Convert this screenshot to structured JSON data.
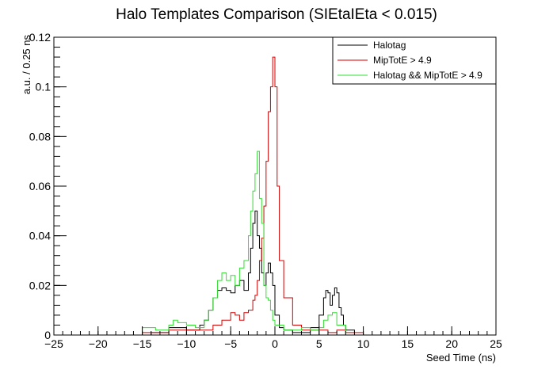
{
  "chart_data": {
    "type": "line",
    "title": "Halo Templates Comparison (SIEtaIEta < 0.015)",
    "xlabel": "Seed Time (ns)",
    "ylabel": "a.u. / 0.25 ns",
    "xlim": [
      -25,
      25
    ],
    "ylim": [
      0,
      0.12
    ],
    "xticks": [
      -25,
      -20,
      -15,
      -10,
      -5,
      0,
      5,
      10,
      15,
      20,
      25
    ],
    "xtick_labels": [
      "−25",
      "−20",
      "−15",
      "−10",
      "−5",
      "0",
      "5",
      "10",
      "15",
      "20",
      "25"
    ],
    "yticks": [
      0,
      0.02,
      0.04,
      0.06,
      0.08,
      0.1,
      0.12
    ],
    "ytick_labels": [
      "0",
      "0.02",
      "0.04",
      "0.06",
      "0.08",
      "0.1",
      "0.12"
    ],
    "bin_width": 0.25,
    "grid": false,
    "legend_position": "top-right",
    "series": [
      {
        "name": "Halotag",
        "color": "#000000",
        "x": [
          -17.0,
          -14.0,
          -12.0,
          -11.0,
          -10.0,
          -9.0,
          -8.5,
          -8.0,
          -7.5,
          -7.0,
          -6.5,
          -6.0,
          -5.5,
          -5.0,
          -4.5,
          -4.0,
          -3.5,
          -3.0,
          -2.75,
          -2.5,
          -2.25,
          -2.0,
          -1.75,
          -1.5,
          -1.25,
          -1.0,
          -0.75,
          -0.5,
          -0.25,
          0.0,
          0.5,
          1.0,
          2.0,
          3.0,
          4.0,
          5.0,
          5.5,
          5.75,
          6.0,
          6.25,
          6.5,
          6.75,
          7.0,
          7.25,
          7.5,
          7.75,
          8.0,
          9.0
        ],
        "y": [
          0.0,
          0.001,
          0.003,
          0.003,
          0.002,
          0.002,
          0.004,
          0.006,
          0.01,
          0.015,
          0.018,
          0.019,
          0.018,
          0.017,
          0.02,
          0.022,
          0.018,
          0.025,
          0.035,
          0.045,
          0.05,
          0.04,
          0.035,
          0.025,
          0.02,
          0.025,
          0.029,
          0.025,
          0.02,
          0.008,
          0.003,
          0.002,
          0.001,
          0.001,
          0.003,
          0.008,
          0.015,
          0.018,
          0.017,
          0.012,
          0.016,
          0.019,
          0.017,
          0.011,
          0.008,
          0.004,
          0.002,
          0.0
        ],
        "label_text": "Halotag"
      },
      {
        "name": "MipTotE > 4.9",
        "color": "#d00000",
        "x": [
          -16.0,
          -15.0,
          -12.0,
          -10.0,
          -8.0,
          -7.0,
          -6.0,
          -5.0,
          -4.5,
          -4.0,
          -3.5,
          -3.0,
          -2.5,
          -2.25,
          -2.0,
          -1.75,
          -1.5,
          -1.25,
          -1.0,
          -0.75,
          -0.5,
          -0.25,
          0.0,
          0.25,
          0.5,
          1.0,
          2.0,
          3.0,
          5.0,
          6.0,
          7.0,
          8.0,
          10.0
        ],
        "y": [
          0.0,
          0.001,
          0.002,
          0.002,
          0.002,
          0.004,
          0.006,
          0.009,
          0.008,
          0.006,
          0.009,
          0.01,
          0.014,
          0.016,
          0.022,
          0.03,
          0.039,
          0.052,
          0.07,
          0.09,
          0.1,
          0.112,
          0.1,
          0.06,
          0.03,
          0.015,
          0.004,
          0.002,
          0.002,
          0.001,
          0.002,
          0.001,
          0.0
        ],
        "label_text": "MipTotE > 4.9"
      },
      {
        "name": "Halotag && MipTotE > 4.9",
        "color": "#33dd33",
        "x": [
          -17.0,
          -15.0,
          -13.5,
          -12.0,
          -11.5,
          -11.0,
          -10.0,
          -9.0,
          -8.0,
          -7.5,
          -7.0,
          -6.5,
          -6.0,
          -5.5,
          -5.0,
          -4.5,
          -4.0,
          -3.5,
          -3.0,
          -2.75,
          -2.5,
          -2.25,
          -2.0,
          -1.75,
          -1.5,
          -1.25,
          -1.0,
          -0.75,
          -0.5,
          -0.25,
          0.0,
          1.0,
          2.0,
          3.0,
          4.0,
          5.0,
          5.5,
          6.0,
          6.5,
          7.0,
          8.0
        ],
        "y": [
          0.0,
          0.003,
          0.002,
          0.004,
          0.006,
          0.005,
          0.004,
          0.003,
          0.006,
          0.01,
          0.015,
          0.022,
          0.025,
          0.022,
          0.024,
          0.02,
          0.027,
          0.03,
          0.04,
          0.05,
          0.058,
          0.065,
          0.074,
          0.055,
          0.045,
          0.02,
          0.015,
          0.014,
          0.01,
          0.006,
          0.004,
          0.002,
          0.002,
          0.003,
          0.002,
          0.003,
          0.006,
          0.008,
          0.009,
          0.004,
          0.0
        ],
        "label_text": "Halotag && MipTotE > 4.9"
      }
    ]
  }
}
